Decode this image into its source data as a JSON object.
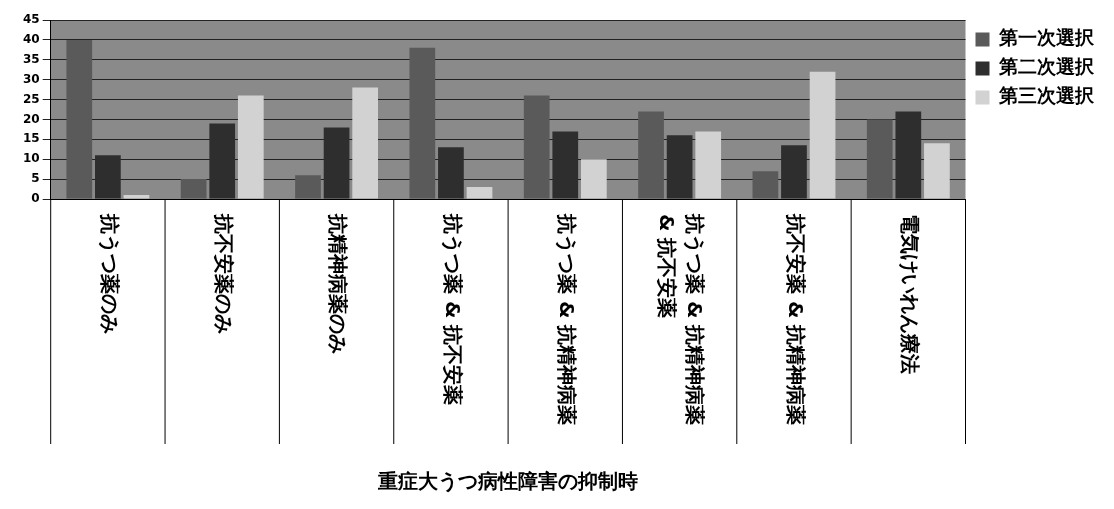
{
  "chart_data": {
    "type": "bar",
    "xlabel": "重症大うつ病性障害の抑制時",
    "categories": [
      "抗うつ薬のみ",
      "抗不安薬のみ",
      "抗精神病薬のみ",
      "抗うつ薬 & 抗不安薬",
      "抗うつ薬 & 抗精神病薬",
      "抗うつ薬 & 抗精神病薬 & 抗不安薬",
      "抗不安薬 & 抗精神病薬",
      "電気けいれん療法"
    ],
    "series": [
      {
        "name": "第一次選択",
        "color": "#5a5a5a",
        "values": [
          40,
          5,
          6,
          38,
          26,
          22,
          7,
          20
        ]
      },
      {
        "name": "第二次選択",
        "color": "#2e2e2e",
        "values": [
          11,
          19,
          18,
          13,
          17,
          16,
          13.5,
          22
        ]
      },
      {
        "name": "第三次選択",
        "color": "#d2d2d2",
        "values": [
          1,
          26,
          28,
          3,
          10,
          17,
          32,
          14
        ]
      }
    ],
    "ylim": [
      0,
      45
    ],
    "yticks": [
      0,
      5,
      10,
      15,
      20,
      25,
      30,
      35,
      40,
      45
    ],
    "grid": "y",
    "legend": "top right"
  }
}
